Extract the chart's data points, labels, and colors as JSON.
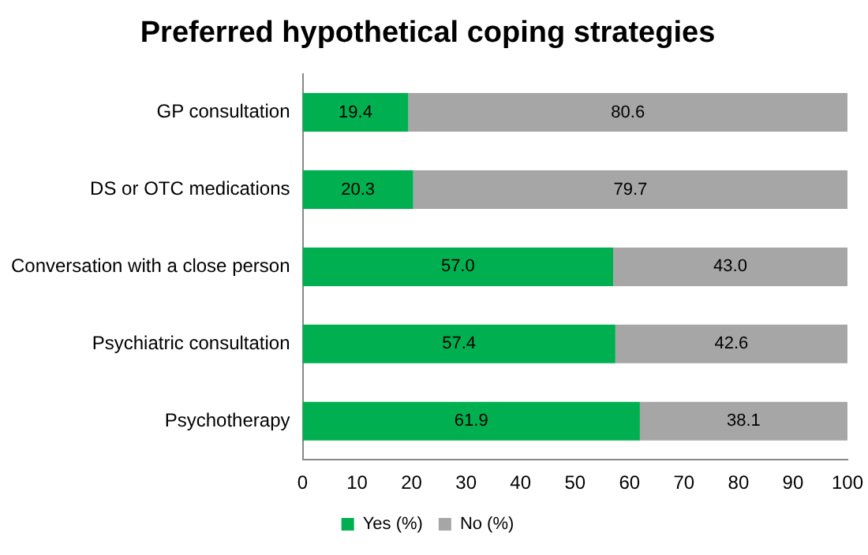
{
  "chart_data": {
    "type": "bar",
    "orientation": "horizontal",
    "stacked": true,
    "title": "Preferred hypothetical coping strategies",
    "categories": [
      "GP consultation",
      "DS or OTC medications",
      "Conversation with a close person",
      "Psychiatric consultation",
      "Psychotherapy"
    ],
    "series": [
      {
        "name": "Yes (%)",
        "color": "#00b050",
        "values": [
          19.4,
          20.3,
          57.0,
          57.4,
          61.9
        ],
        "value_labels": [
          "19.4",
          "20.3",
          "57.0",
          "57.4",
          "61.9"
        ]
      },
      {
        "name": "No (%)",
        "color": "#a6a6a6",
        "values": [
          80.6,
          79.7,
          43.0,
          42.6,
          38.1
        ],
        "value_labels": [
          "80.6",
          "79.7",
          "43.0",
          "42.6",
          "38.1"
        ]
      }
    ],
    "xlim": [
      0,
      100
    ],
    "xticks": [
      0,
      10,
      20,
      30,
      40,
      50,
      60,
      70,
      80,
      90,
      100
    ],
    "grid": false,
    "legend": "bottom"
  }
}
